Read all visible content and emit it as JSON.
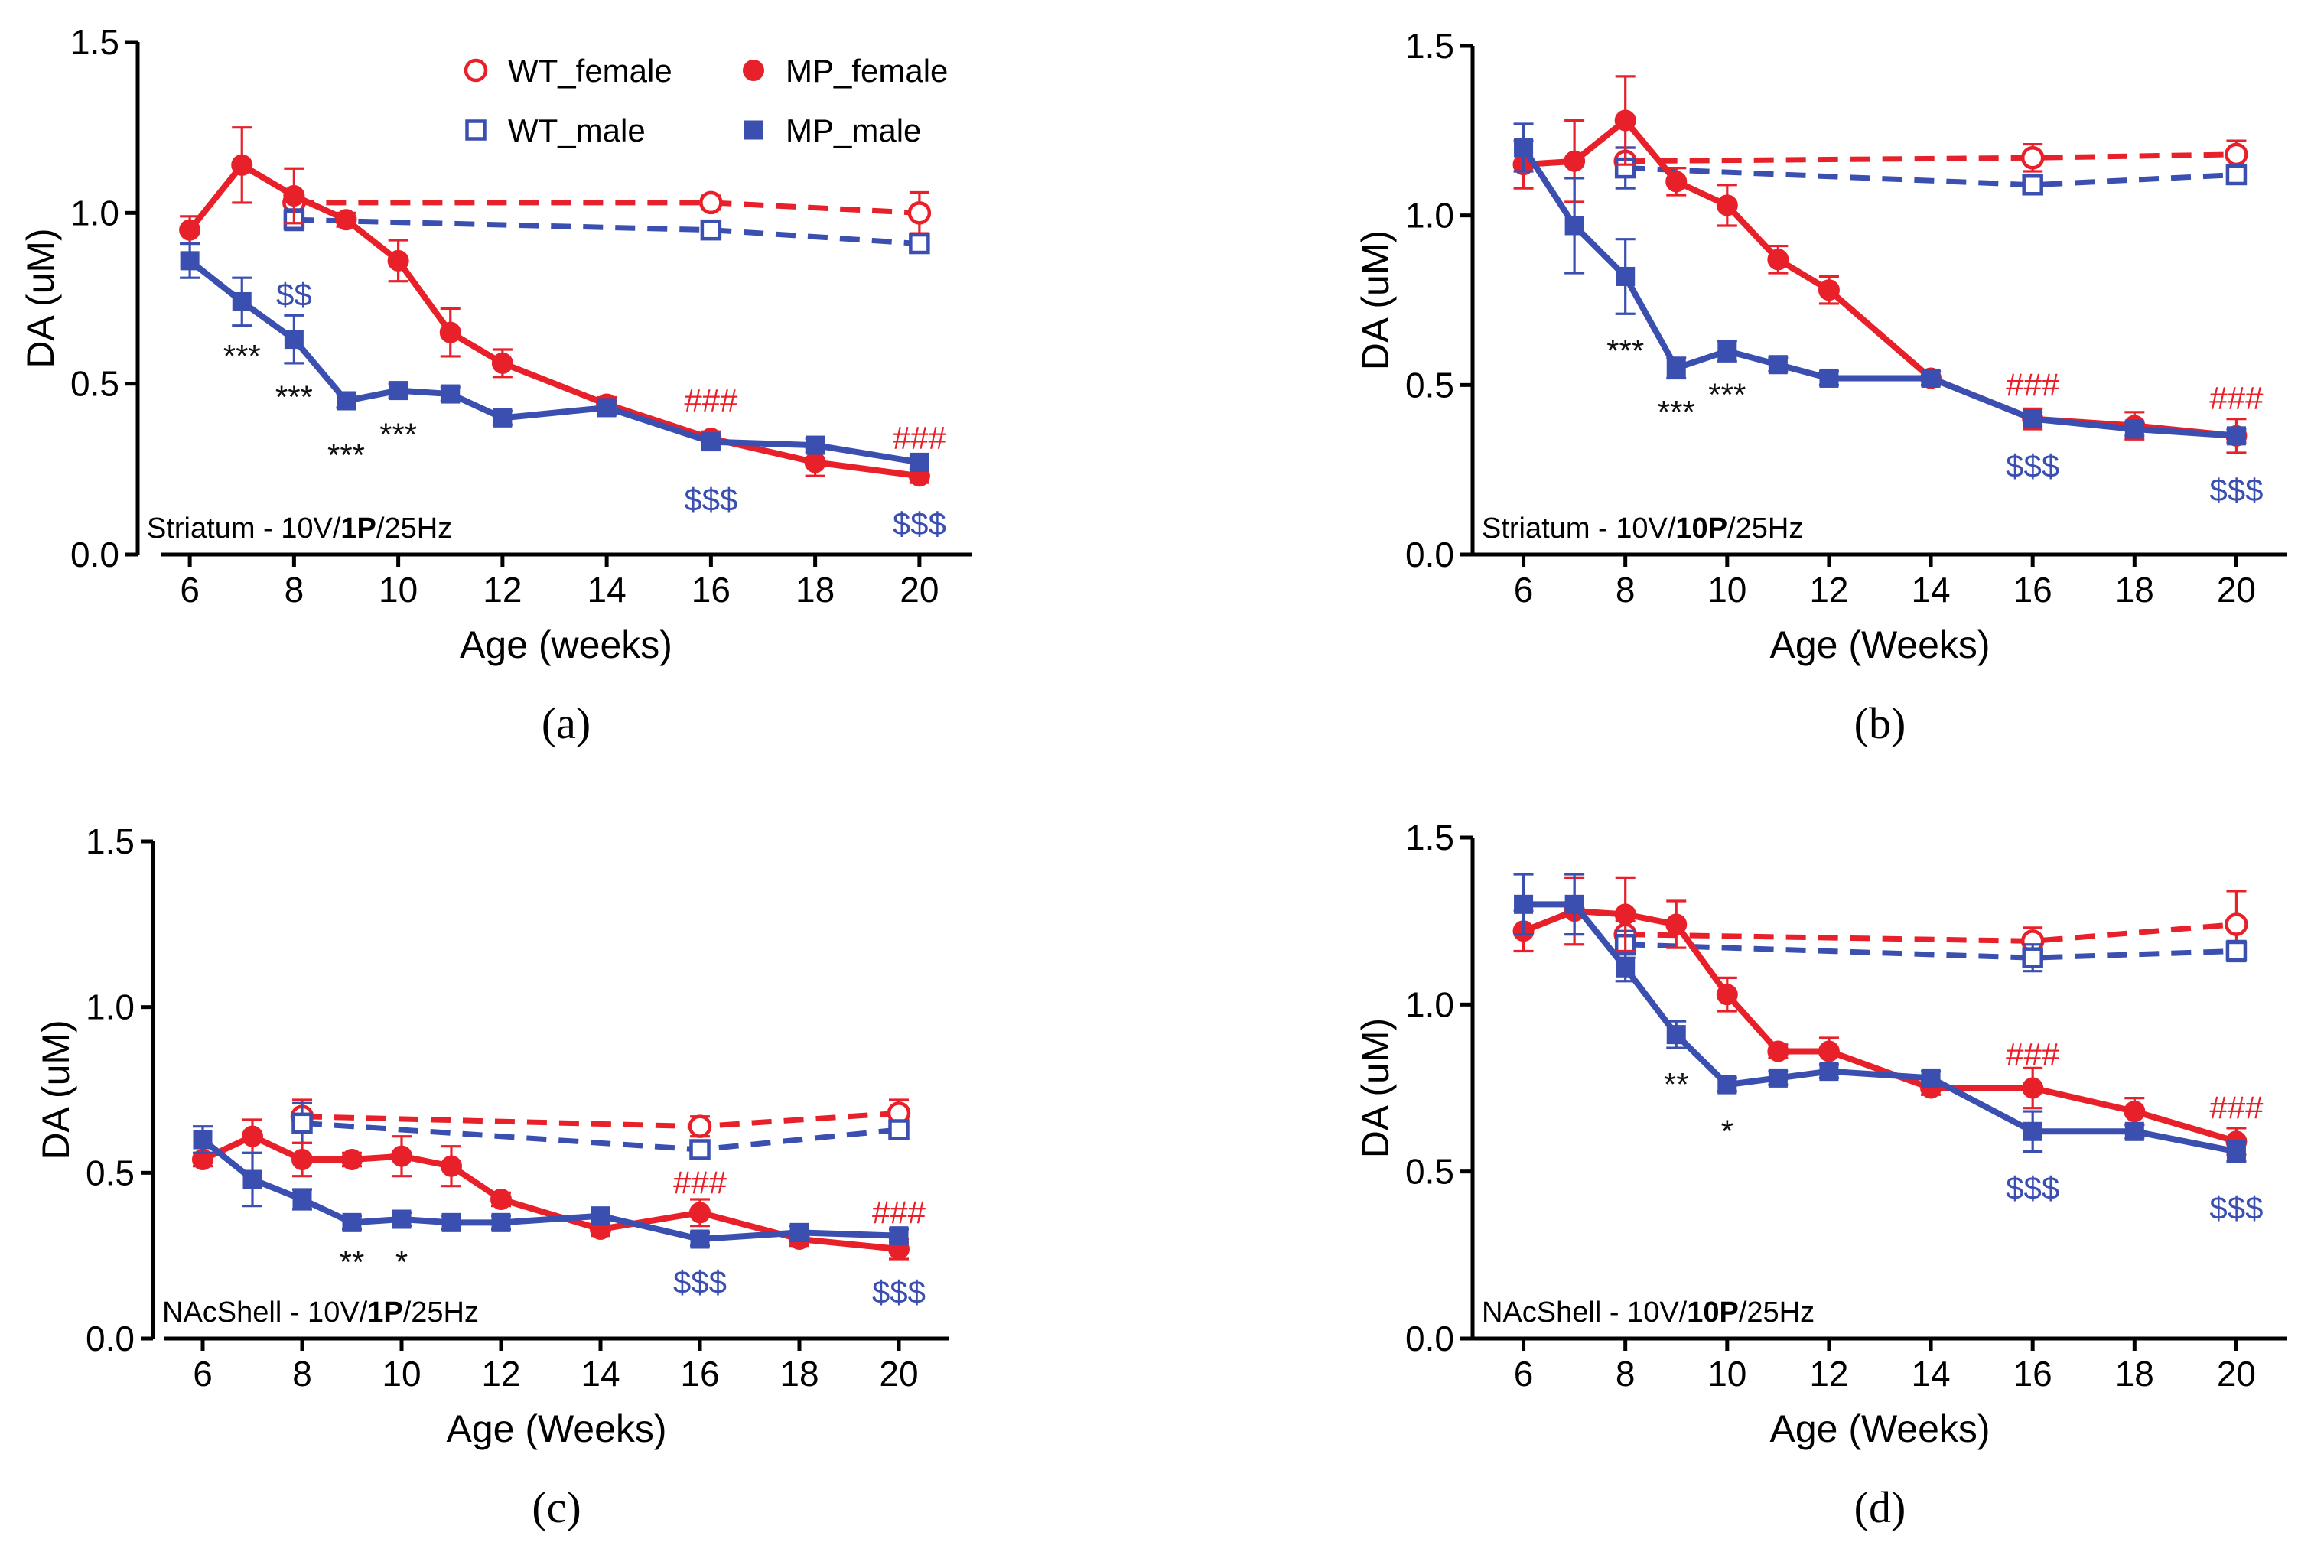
{
  "colors": {
    "female": "#e8202a",
    "male": "#3a4fb0",
    "sig_black": "#111111",
    "axis": "#000000"
  },
  "legend": {
    "wt_female": "WT_female",
    "mp_female": "MP_female",
    "wt_male": "WT_male",
    "mp_male": "MP_male"
  },
  "chart_data": [
    {
      "panel": "(a)",
      "type": "line",
      "xlabel": "Age (weeks)",
      "ylabel": "DA (uM)",
      "condition_prefix": "Striatum - 10V/",
      "condition_bold": "1P",
      "condition_suffix": "/25Hz",
      "ylim": [
        0,
        1.5
      ],
      "yticks": [
        0.0,
        0.5,
        1.0,
        1.5
      ],
      "ytick_labels": [
        "0.0",
        "0.5",
        "1.0",
        "1.5"
      ],
      "xlim": [
        5,
        21
      ],
      "xticks": [
        6,
        8,
        10,
        12,
        14,
        16,
        18,
        20
      ],
      "show_legend": true,
      "series": [
        {
          "name": "WT_female",
          "color": "#e8202a",
          "marker": "circle-open",
          "dashed": true,
          "x": [
            8,
            16,
            20
          ],
          "y": [
            1.03,
            1.03,
            1.0
          ],
          "err": [
            0.03,
            0.02,
            0.06
          ]
        },
        {
          "name": "WT_male",
          "color": "#3a4fb0",
          "marker": "square-open",
          "dashed": true,
          "x": [
            8,
            16,
            20
          ],
          "y": [
            0.98,
            0.95,
            0.91
          ],
          "err": [
            0.03,
            0.02,
            0.02
          ]
        },
        {
          "name": "MP_female",
          "color": "#e8202a",
          "marker": "circle",
          "dashed": false,
          "x": [
            6,
            7,
            8,
            9,
            10,
            11,
            12,
            14,
            16,
            18,
            20
          ],
          "y": [
            0.95,
            1.14,
            1.05,
            0.98,
            0.86,
            0.65,
            0.56,
            0.44,
            0.34,
            0.27,
            0.23
          ],
          "err": [
            0.04,
            0.11,
            0.08,
            0.02,
            0.06,
            0.07,
            0.04,
            0.02,
            0.02,
            0.04,
            0.02
          ]
        },
        {
          "name": "MP_male",
          "color": "#3a4fb0",
          "marker": "square",
          "dashed": false,
          "x": [
            6,
            7,
            8,
            9,
            10,
            11,
            12,
            14,
            16,
            18,
            20
          ],
          "y": [
            0.86,
            0.74,
            0.63,
            0.45,
            0.48,
            0.47,
            0.4,
            0.43,
            0.33,
            0.32,
            0.27
          ],
          "err": [
            0.05,
            0.07,
            0.07,
            0.02,
            0.02,
            0.02,
            0.02,
            0.02,
            0.02,
            0.02,
            0.02
          ]
        }
      ],
      "annotations": [
        {
          "text": "$$",
          "x": 8,
          "y": 0.76,
          "color": "male"
        },
        {
          "text": "***",
          "x": 7,
          "y": 0.58,
          "color": "black"
        },
        {
          "text": "***",
          "x": 8,
          "y": 0.46,
          "color": "black"
        },
        {
          "text": "***",
          "x": 9,
          "y": 0.29,
          "color": "black"
        },
        {
          "text": "***",
          "x": 10,
          "y": 0.35,
          "color": "black"
        },
        {
          "text": "###",
          "x": 16,
          "y": 0.45,
          "color": "female"
        },
        {
          "text": "$$$",
          "x": 16,
          "y": 0.16,
          "color": "male"
        },
        {
          "text": "###",
          "x": 20,
          "y": 0.34,
          "color": "female"
        },
        {
          "text": "$$$",
          "x": 20,
          "y": 0.09,
          "color": "male"
        }
      ]
    },
    {
      "panel": "(b)",
      "type": "line",
      "xlabel": "Age (Weeks)",
      "ylabel": "DA (uM)",
      "condition_prefix": "Striatum - 10V/",
      "condition_bold": "10P",
      "condition_suffix": "/25Hz",
      "ylim": [
        0,
        1.5
      ],
      "yticks": [
        0.0,
        0.5,
        1.0,
        1.5
      ],
      "ytick_labels": [
        "0.0",
        "0.5",
        "1.0",
        "1.5"
      ],
      "xlim": [
        5,
        21
      ],
      "xticks": [
        6,
        8,
        10,
        12,
        14,
        16,
        18,
        20
      ],
      "show_legend": false,
      "series": [
        {
          "name": "WT_female",
          "color": "#e8202a",
          "marker": "circle-open",
          "dashed": true,
          "x": [
            8,
            16,
            20
          ],
          "y": [
            1.16,
            1.17,
            1.18
          ],
          "err": [
            0.04,
            0.04,
            0.04
          ]
        },
        {
          "name": "WT_male",
          "color": "#3a4fb0",
          "marker": "square-open",
          "dashed": true,
          "x": [
            8,
            16,
            20
          ],
          "y": [
            1.14,
            1.09,
            1.12
          ],
          "err": [
            0.06,
            0.02,
            0.02
          ]
        },
        {
          "name": "MP_female",
          "color": "#e8202a",
          "marker": "circle",
          "dashed": false,
          "x": [
            6,
            7,
            8,
            9,
            10,
            11,
            12,
            14,
            16,
            18,
            20
          ],
          "y": [
            1.15,
            1.16,
            1.28,
            1.1,
            1.03,
            0.87,
            0.78,
            0.52,
            0.4,
            0.38,
            0.35
          ],
          "err": [
            0.07,
            0.12,
            0.13,
            0.04,
            0.06,
            0.04,
            0.04,
            0.02,
            0.03,
            0.04,
            0.05
          ]
        },
        {
          "name": "MP_male",
          "color": "#3a4fb0",
          "marker": "square",
          "dashed": false,
          "x": [
            6,
            7,
            8,
            9,
            10,
            11,
            12,
            14,
            16,
            18,
            20
          ],
          "y": [
            1.2,
            0.97,
            0.82,
            0.55,
            0.6,
            0.56,
            0.52,
            0.52,
            0.4,
            0.37,
            0.35
          ],
          "err": [
            0.07,
            0.14,
            0.11,
            0.03,
            0.03,
            0.02,
            0.02,
            0.02,
            0.02,
            0.02,
            0.02
          ]
        }
      ],
      "annotations": [
        {
          "text": "***",
          "x": 8,
          "y": 0.6,
          "color": "black"
        },
        {
          "text": "***",
          "x": 9,
          "y": 0.42,
          "color": "black"
        },
        {
          "text": "***",
          "x": 10,
          "y": 0.47,
          "color": "black"
        },
        {
          "text": "###",
          "x": 16,
          "y": 0.5,
          "color": "female"
        },
        {
          "text": "$$$",
          "x": 16,
          "y": 0.26,
          "color": "male"
        },
        {
          "text": "###",
          "x": 20,
          "y": 0.46,
          "color": "female"
        },
        {
          "text": "$$$",
          "x": 20,
          "y": 0.19,
          "color": "male"
        }
      ]
    },
    {
      "panel": "(c)",
      "type": "line",
      "xlabel": "Age (Weeks)",
      "ylabel": "DA (uM)",
      "condition_prefix": "NAcShell - 10V/",
      "condition_bold": "1P",
      "condition_suffix": "/25Hz",
      "ylim": [
        0,
        1.5
      ],
      "yticks": [
        0.0,
        0.5,
        1.0,
        1.5
      ],
      "ytick_labels": [
        "0.0",
        "0.5",
        "1.0",
        "1.5"
      ],
      "xlim": [
        5,
        21
      ],
      "xticks": [
        6,
        8,
        10,
        12,
        14,
        16,
        18,
        20
      ],
      "show_legend": false,
      "series": [
        {
          "name": "WT_female",
          "color": "#e8202a",
          "marker": "circle-open",
          "dashed": true,
          "x": [
            8,
            16,
            20
          ],
          "y": [
            0.67,
            0.64,
            0.68
          ],
          "err": [
            0.05,
            0.03,
            0.04
          ]
        },
        {
          "name": "WT_male",
          "color": "#3a4fb0",
          "marker": "square-open",
          "dashed": true,
          "x": [
            8,
            16,
            20
          ],
          "y": [
            0.65,
            0.57,
            0.63
          ],
          "err": [
            0.06,
            0.02,
            0.02
          ]
        },
        {
          "name": "MP_female",
          "color": "#e8202a",
          "marker": "circle",
          "dashed": false,
          "x": [
            6,
            7,
            8,
            9,
            10,
            11,
            12,
            14,
            16,
            18,
            20
          ],
          "y": [
            0.54,
            0.61,
            0.54,
            0.54,
            0.55,
            0.52,
            0.42,
            0.33,
            0.38,
            0.3,
            0.27
          ],
          "err": [
            0.02,
            0.05,
            0.05,
            0.02,
            0.06,
            0.06,
            0.02,
            0.02,
            0.04,
            0.02,
            0.03
          ]
        },
        {
          "name": "MP_male",
          "color": "#3a4fb0",
          "marker": "square",
          "dashed": false,
          "x": [
            6,
            7,
            8,
            9,
            10,
            11,
            12,
            14,
            16,
            18,
            20
          ],
          "y": [
            0.6,
            0.48,
            0.42,
            0.35,
            0.36,
            0.35,
            0.35,
            0.37,
            0.3,
            0.32,
            0.31
          ],
          "err": [
            0.04,
            0.08,
            0.03,
            0.02,
            0.02,
            0.02,
            0.02,
            0.02,
            0.02,
            0.02,
            0.02
          ]
        }
      ],
      "annotations": [
        {
          "text": "**",
          "x": 9,
          "y": 0.23,
          "color": "black"
        },
        {
          "text": "*",
          "x": 10,
          "y": 0.23,
          "color": "black"
        },
        {
          "text": "###",
          "x": 16,
          "y": 0.47,
          "color": "female"
        },
        {
          "text": "$$$",
          "x": 16,
          "y": 0.17,
          "color": "male"
        },
        {
          "text": "###",
          "x": 20,
          "y": 0.38,
          "color": "female"
        },
        {
          "text": "$$$",
          "x": 20,
          "y": 0.14,
          "color": "male"
        }
      ]
    },
    {
      "panel": "(d)",
      "type": "line",
      "xlabel": "Age (Weeks)",
      "ylabel": "DA (uM)",
      "condition_prefix": "NAcShell - 10V/",
      "condition_bold": "10P",
      "condition_suffix": "/25Hz",
      "ylim": [
        0,
        1.5
      ],
      "yticks": [
        0.0,
        0.5,
        1.0,
        1.5
      ],
      "ytick_labels": [
        "0.0",
        "0.5",
        "1.0",
        "1.5"
      ],
      "xlim": [
        5,
        21
      ],
      "xticks": [
        6,
        8,
        10,
        12,
        14,
        16,
        18,
        20
      ],
      "show_legend": false,
      "series": [
        {
          "name": "WT_female",
          "color": "#e8202a",
          "marker": "circle-open",
          "dashed": true,
          "x": [
            8,
            16,
            20
          ],
          "y": [
            1.21,
            1.19,
            1.24
          ],
          "err": [
            0.04,
            0.04,
            0.1
          ]
        },
        {
          "name": "WT_male",
          "color": "#3a4fb0",
          "marker": "square-open",
          "dashed": true,
          "x": [
            8,
            16,
            20
          ],
          "y": [
            1.18,
            1.14,
            1.16
          ],
          "err": [
            0.04,
            0.04,
            0.03
          ]
        },
        {
          "name": "MP_female",
          "color": "#e8202a",
          "marker": "circle",
          "dashed": false,
          "x": [
            6,
            7,
            8,
            9,
            10,
            11,
            12,
            14,
            16,
            18,
            20
          ],
          "y": [
            1.22,
            1.28,
            1.27,
            1.24,
            1.03,
            0.86,
            0.86,
            0.75,
            0.75,
            0.68,
            0.59
          ],
          "err": [
            0.06,
            0.1,
            0.11,
            0.07,
            0.05,
            0.02,
            0.04,
            0.02,
            0.06,
            0.04,
            0.04
          ]
        },
        {
          "name": "MP_male",
          "color": "#3a4fb0",
          "marker": "square",
          "dashed": false,
          "x": [
            6,
            7,
            8,
            9,
            10,
            11,
            12,
            14,
            16,
            18,
            20
          ],
          "y": [
            1.3,
            1.3,
            1.11,
            0.91,
            0.76,
            0.78,
            0.8,
            0.78,
            0.62,
            0.62,
            0.56
          ],
          "err": [
            0.09,
            0.09,
            0.04,
            0.04,
            0.02,
            0.02,
            0.02,
            0.02,
            0.06,
            0.02,
            0.03
          ]
        }
      ],
      "annotations": [
        {
          "text": "**",
          "x": 9,
          "y": 0.76,
          "color": "black"
        },
        {
          "text": "*",
          "x": 10,
          "y": 0.62,
          "color": "black"
        },
        {
          "text": "###",
          "x": 16,
          "y": 0.85,
          "color": "female"
        },
        {
          "text": "$$$",
          "x": 16,
          "y": 0.45,
          "color": "male"
        },
        {
          "text": "###",
          "x": 20,
          "y": 0.69,
          "color": "female"
        },
        {
          "text": "$$$",
          "x": 20,
          "y": 0.39,
          "color": "male"
        }
      ]
    }
  ]
}
